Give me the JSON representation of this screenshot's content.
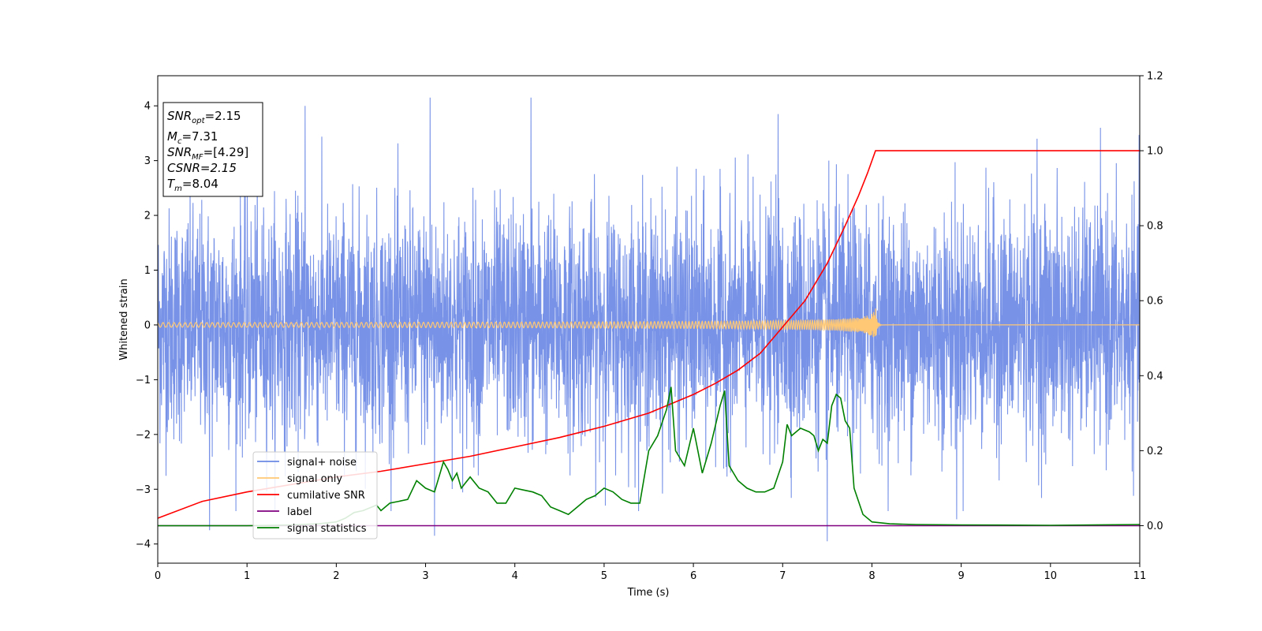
{
  "chart_data": {
    "type": "line",
    "xlabel": "Time (s)",
    "ylabel": "Whitened strain",
    "xlim": [
      0,
      11
    ],
    "ylim": [
      -4.35,
      4.55
    ],
    "y2lim": [
      -0.1,
      1.2
    ],
    "x_ticks": [
      "0",
      "1",
      "2",
      "3",
      "4",
      "5",
      "6",
      "7",
      "8",
      "9",
      "10",
      "11"
    ],
    "y_ticks": [
      "4",
      "3",
      "2",
      "1",
      "0",
      "−1",
      "−2",
      "−3",
      "−4"
    ],
    "y2_ticks": [
      "1.2",
      "1.0",
      "0.8",
      "0.6",
      "0.4",
      "0.2",
      "0.0"
    ],
    "grid": false,
    "legend_position": "lower-left",
    "annotation": {
      "snr_opt": "=2.15",
      "mc": "=7.31",
      "snr_mf": "=[4.29]",
      "csnr": "CSNR=2.15",
      "tm": "=8.04"
    },
    "series": [
      {
        "name": "signal+ noise",
        "color": "#6b89e5",
        "axis": "left",
        "kind": "gaussian noise, roughly -3.8 to 4.2",
        "samples": 4400,
        "std": 1.05,
        "peaks": [
          {
            "x": 1.65,
            "y": 4.0
          },
          {
            "x": 3.05,
            "y": 4.15
          },
          {
            "x": 4.18,
            "y": 4.15
          },
          {
            "x": 6.95,
            "y": 3.85
          },
          {
            "x": 9.85,
            "y": 3.4
          },
          {
            "x": 7.5,
            "y": -3.95
          },
          {
            "x": 3.1,
            "y": -3.85
          },
          {
            "x": 0.58,
            "y": -3.75
          },
          {
            "x": 8.95,
            "y": -3.55
          }
        ]
      },
      {
        "name": "signal only",
        "color": "#ffc875",
        "axis": "left",
        "kind": "chirp",
        "merger_time": 8.04,
        "amplitude_at_merger": 0.3
      },
      {
        "name": "cumilative SNR",
        "color": "#ff0000",
        "axis": "right",
        "x": [
          0,
          0.5,
          1,
          1.5,
          2,
          2.5,
          3,
          3.5,
          4,
          4.5,
          5,
          5.5,
          6,
          6.25,
          6.5,
          6.75,
          7,
          7.25,
          7.5,
          7.7,
          7.85,
          7.95,
          8.04,
          11
        ],
        "values": [
          0.02,
          0.065,
          0.09,
          0.11,
          0.13,
          0.145,
          0.165,
          0.185,
          0.21,
          0.235,
          0.265,
          0.3,
          0.35,
          0.38,
          0.415,
          0.46,
          0.53,
          0.6,
          0.7,
          0.8,
          0.88,
          0.94,
          1.0,
          1.0
        ]
      },
      {
        "name": "label",
        "color": "#800080",
        "axis": "right",
        "x": [
          0,
          11
        ],
        "values": [
          0.0,
          0.0
        ]
      },
      {
        "name": "signal statistics",
        "color": "#008000",
        "axis": "right",
        "x": [
          0,
          0.5,
          1,
          1.5,
          1.8,
          2.0,
          2.1,
          2.2,
          2.3,
          2.4,
          2.45,
          2.5,
          2.6,
          2.7,
          2.8,
          2.9,
          3.0,
          3.1,
          3.2,
          3.25,
          3.3,
          3.35,
          3.4,
          3.5,
          3.6,
          3.7,
          3.8,
          3.9,
          4.0,
          4.1,
          4.2,
          4.3,
          4.4,
          4.5,
          4.6,
          4.7,
          4.8,
          4.9,
          5.0,
          5.1,
          5.2,
          5.3,
          5.4,
          5.5,
          5.6,
          5.7,
          5.75,
          5.8,
          5.9,
          6.0,
          6.1,
          6.2,
          6.3,
          6.35,
          6.4,
          6.5,
          6.6,
          6.7,
          6.8,
          6.9,
          7.0,
          7.05,
          7.1,
          7.2,
          7.3,
          7.35,
          7.4,
          7.45,
          7.5,
          7.55,
          7.6,
          7.65,
          7.7,
          7.75,
          7.8,
          7.9,
          8.0,
          8.2,
          8.5,
          9.0,
          10.0,
          11.0
        ],
        "values": [
          0.0,
          0.0,
          0.0,
          0.002,
          0.005,
          0.01,
          0.02,
          0.035,
          0.04,
          0.05,
          0.055,
          0.04,
          0.06,
          0.065,
          0.07,
          0.12,
          0.1,
          0.09,
          0.17,
          0.15,
          0.12,
          0.14,
          0.1,
          0.13,
          0.1,
          0.09,
          0.06,
          0.06,
          0.1,
          0.095,
          0.09,
          0.08,
          0.05,
          0.04,
          0.03,
          0.05,
          0.07,
          0.08,
          0.1,
          0.09,
          0.07,
          0.06,
          0.06,
          0.2,
          0.24,
          0.31,
          0.37,
          0.2,
          0.16,
          0.26,
          0.14,
          0.22,
          0.32,
          0.36,
          0.16,
          0.12,
          0.1,
          0.09,
          0.09,
          0.1,
          0.17,
          0.27,
          0.24,
          0.26,
          0.25,
          0.24,
          0.2,
          0.23,
          0.22,
          0.32,
          0.35,
          0.34,
          0.28,
          0.26,
          0.1,
          0.03,
          0.01,
          0.005,
          0.003,
          0.002,
          0.001,
          0.003
        ]
      }
    ]
  }
}
